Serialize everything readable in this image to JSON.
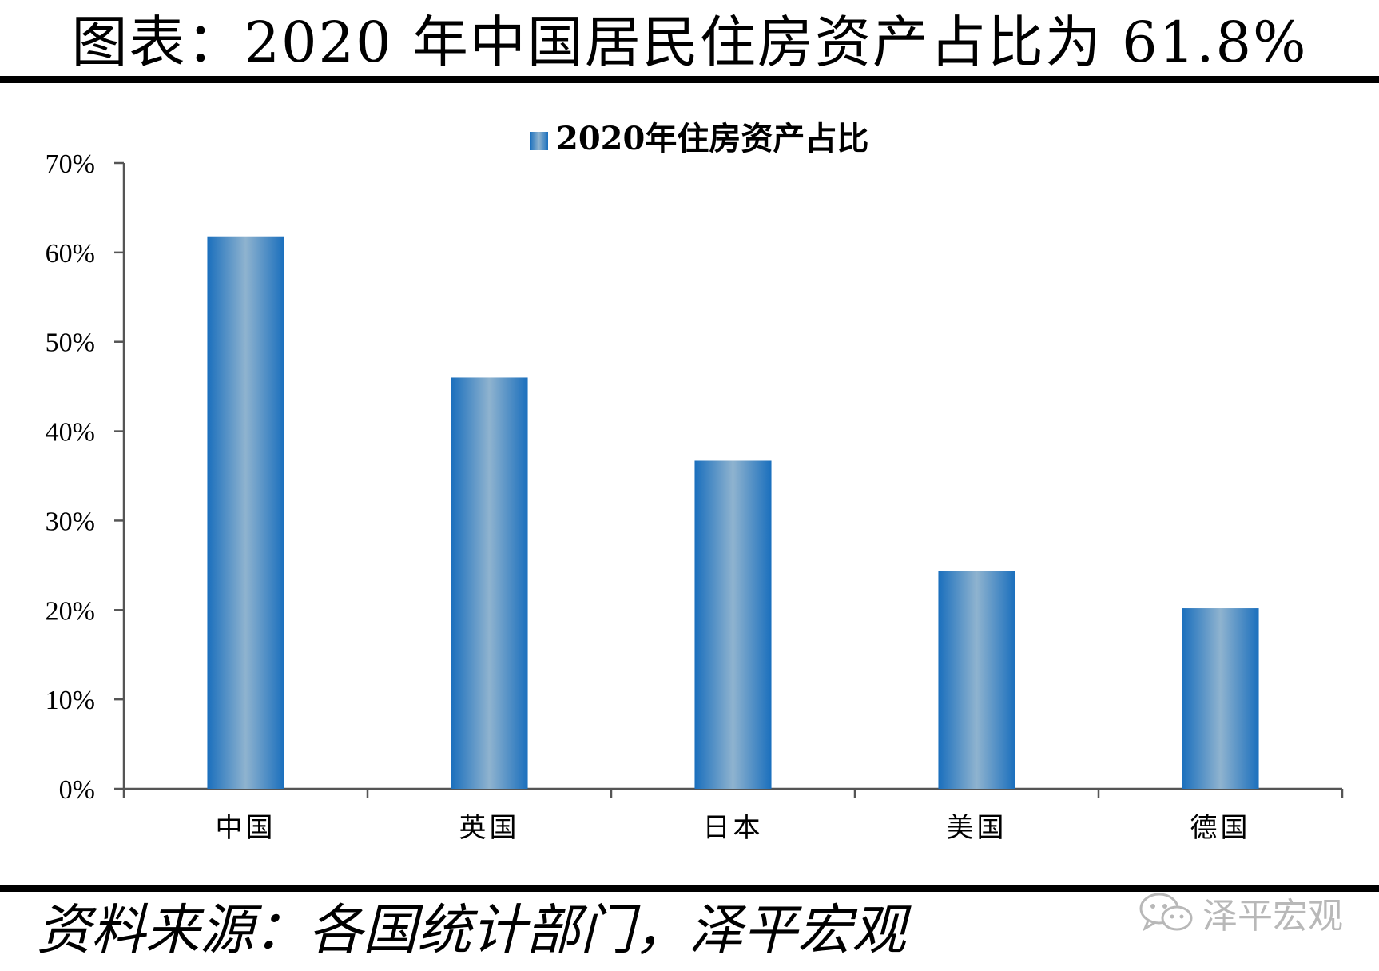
{
  "header": {
    "title": "图表：2020 年中国居民住房资产占比为 61.8%"
  },
  "footer": {
    "source": "资料来源：各国统计部门，泽平宏观",
    "watermark_text": "泽平宏观",
    "watermark_icon": "wechat-icon"
  },
  "colors": {
    "bar_edge": "#1a6fbd",
    "bar_center": "#8fb3cf",
    "axis": "#555555",
    "text": "#000000"
  },
  "chart_data": {
    "type": "bar",
    "title": "",
    "xlabel": "",
    "ylabel": "",
    "categories": [
      "中国",
      "英国",
      "日本",
      "美国",
      "德国"
    ],
    "series": [
      {
        "name": "2020年住房资产占比",
        "values": [
          61.8,
          46.0,
          36.7,
          24.4,
          20.2
        ]
      }
    ],
    "value_unit": "%",
    "ylim": [
      0,
      70
    ],
    "yticks": [
      0,
      10,
      20,
      30,
      40,
      50,
      60,
      70
    ],
    "ytick_labels": [
      "0%",
      "10%",
      "20%",
      "30%",
      "40%",
      "50%",
      "60%",
      "70%"
    ],
    "grid": false,
    "legend_position": "top-center"
  }
}
